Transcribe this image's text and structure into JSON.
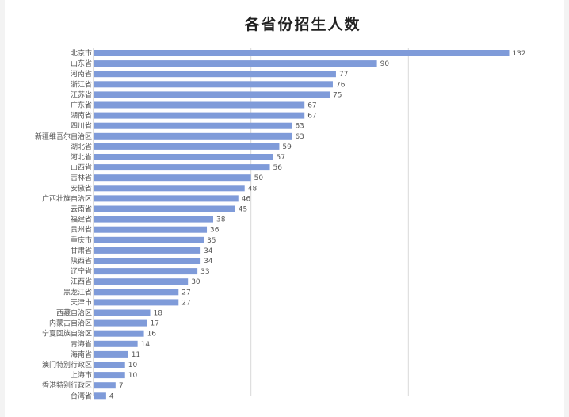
{
  "colors": {
    "bar": "#7f9bd9",
    "grid": "#d9d9d9",
    "axis": "#bfbfbf"
  },
  "chart_data": {
    "type": "bar",
    "orientation": "horizontal",
    "title": "各省份招生人数",
    "xlabel": "",
    "ylabel": "",
    "xlim": [
      0,
      150
    ],
    "grid": true,
    "categories": [
      "北京市",
      "山东省",
      "河南省",
      "浙江省",
      "江苏省",
      "广东省",
      "湖南省",
      "四川省",
      "新疆维吾尔自治区",
      "湖北省",
      "河北省",
      "山西省",
      "吉林省",
      "安徽省",
      "广西壮族自治区",
      "云南省",
      "福建省",
      "贵州省",
      "重庆市",
      "甘肃省",
      "陕西省",
      "辽宁省",
      "江西省",
      "黑龙江省",
      "天津市",
      "西藏自治区",
      "内蒙古自治区",
      "宁夏回族自治区",
      "青海省",
      "海南省",
      "澳门特别行政区",
      "上海市",
      "香港特别行政区",
      "台湾省"
    ],
    "values": [
      132,
      90,
      77,
      76,
      75,
      67,
      67,
      63,
      63,
      59,
      57,
      56,
      50,
      48,
      46,
      45,
      38,
      36,
      35,
      34,
      34,
      33,
      30,
      27,
      27,
      18,
      17,
      16,
      14,
      11,
      10,
      10,
      7,
      4
    ]
  }
}
